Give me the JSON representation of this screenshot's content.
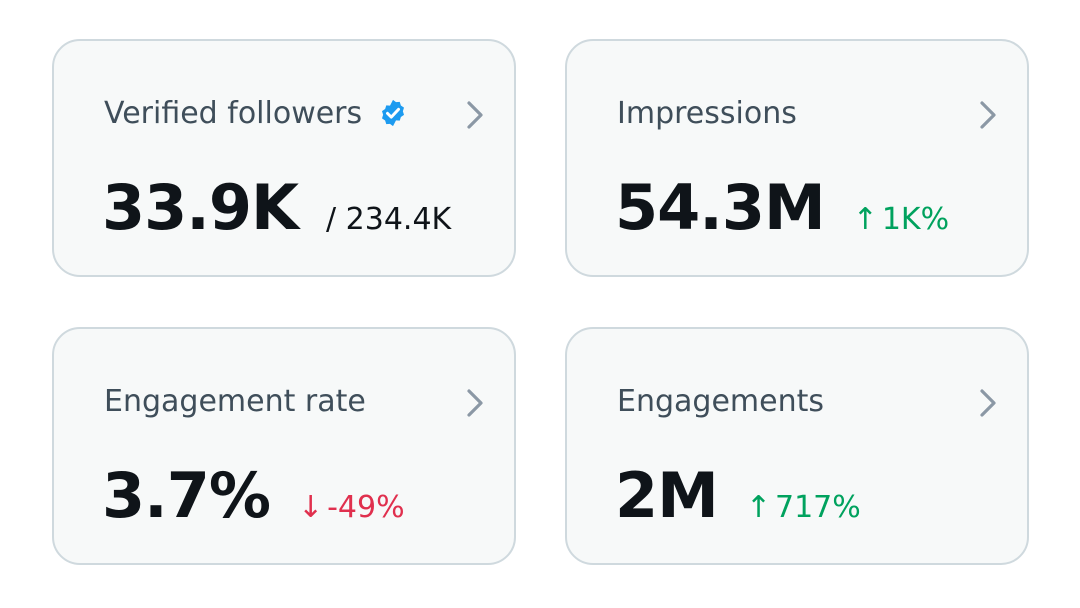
{
  "cards": [
    {
      "title": "Verified followers",
      "value": "33.9K",
      "sub_value": "/ 234.4K",
      "icon": "verified-badge-icon"
    },
    {
      "title": "Impressions",
      "value": "54.3M",
      "delta": "1K%",
      "delta_arrow": "↑",
      "delta_direction": "up"
    },
    {
      "title": "Engagement rate",
      "value": "3.7%",
      "delta": "-49%",
      "delta_arrow": "↓",
      "delta_direction": "down"
    },
    {
      "title": "Engagements",
      "value": "2M",
      "delta": "717%",
      "delta_arrow": "↑",
      "delta_direction": "up"
    }
  ],
  "colors": {
    "card_bg": "#f7f9f9",
    "card_border": "#cfd9de",
    "title_text": "#3f4e5a",
    "value_text": "#0f1419",
    "positive": "#00a25e",
    "negative": "#e0304e",
    "verified_blue": "#1d9bf0",
    "chevron": "#8b98a5"
  }
}
